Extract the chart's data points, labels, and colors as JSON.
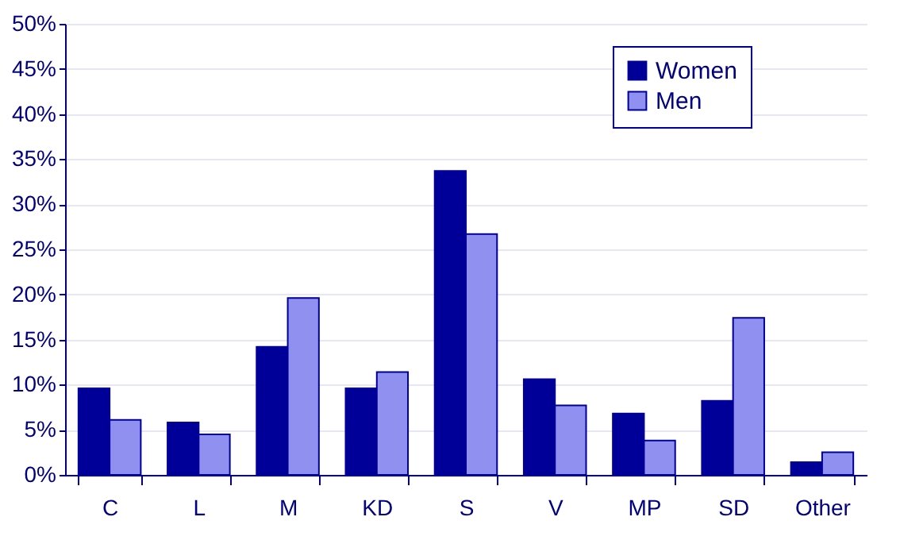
{
  "chart_data": {
    "type": "bar",
    "categories": [
      "C",
      "L",
      "M",
      "KD",
      "S",
      "V",
      "MP",
      "SD",
      "Other"
    ],
    "series": [
      {
        "name": "Women",
        "color": "#000099",
        "values": [
          9.6,
          5.8,
          14.2,
          9.6,
          33.7,
          10.6,
          6.8,
          8.2,
          1.4
        ]
      },
      {
        "name": "Men",
        "color": "#9090f0",
        "values": [
          6.1,
          4.5,
          19.6,
          11.4,
          26.7,
          7.7,
          3.8,
          17.4,
          2.5
        ]
      }
    ],
    "ylim": [
      0,
      50
    ],
    "yticks": [
      {
        "value": 0,
        "label": "0%"
      },
      {
        "value": 5,
        "label": "5%"
      },
      {
        "value": 10,
        "label": "10%"
      },
      {
        "value": 15,
        "label": "15%"
      },
      {
        "value": 20,
        "label": "20%"
      },
      {
        "value": 25,
        "label": "25%"
      },
      {
        "value": 30,
        "label": "30%"
      },
      {
        "value": 35,
        "label": "35%"
      },
      {
        "value": 40,
        "label": "40%"
      },
      {
        "value": 45,
        "label": "45%"
      },
      {
        "value": 50,
        "label": "50%"
      }
    ],
    "grid": "y",
    "legend": "top right"
  }
}
